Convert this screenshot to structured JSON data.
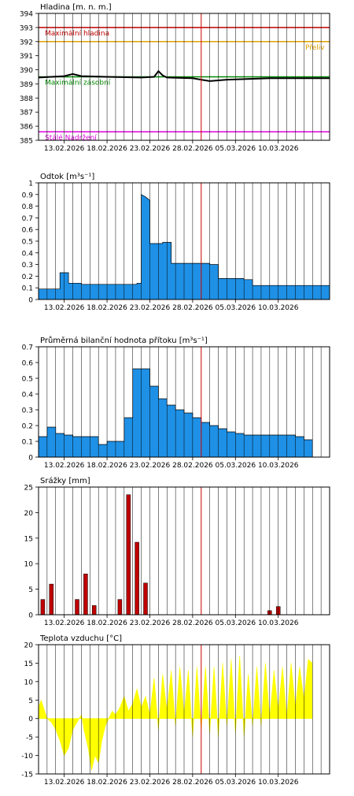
{
  "x_dates": [
    "13.02.2026",
    "18.02.2026",
    "23.02.2026",
    "28.02.2026",
    "05.03.2026",
    "10.03.2026"
  ],
  "colors": {
    "fill": "#1e90e6",
    "bar": "#c00000",
    "temp": "#ffff00",
    "today": "#cc0000",
    "grid": "#000000"
  },
  "chart_data": [
    {
      "type": "line",
      "title": "Hladina [m. n. m.]",
      "ylim": [
        385,
        394
      ],
      "yticks": [
        385,
        386,
        387,
        388,
        389,
        390,
        391,
        392,
        393,
        394
      ],
      "x_start": "2026-02-10",
      "x_end": "2026-03-15",
      "levels": [
        {
          "name": "Maximální hladina",
          "value": 393,
          "color": "#c00000"
        },
        {
          "name": "Přeliv",
          "value": 392,
          "color": "#e0a000"
        },
        {
          "name": "Maximální zásobní",
          "value": 389.5,
          "color": "#008800"
        },
        {
          "name": "Stálé Nadržení",
          "value": 385.6,
          "color": "#dd00dd"
        }
      ],
      "series": [
        {
          "values": [
            [
              0,
              389.45
            ],
            [
              3,
              389.55
            ],
            [
              4,
              389.7
            ],
            [
              5,
              389.55
            ],
            [
              8,
              389.5
            ],
            [
              12,
              389.45
            ],
            [
              13.5,
              389.5
            ],
            [
              14,
              389.9
            ],
            [
              14.5,
              389.6
            ],
            [
              15,
              389.45
            ],
            [
              18,
              389.4
            ],
            [
              19,
              389.3
            ],
            [
              20,
              389.2
            ],
            [
              22,
              389.3
            ],
            [
              27,
              389.4
            ],
            [
              34,
              389.4
            ]
          ]
        }
      ]
    },
    {
      "type": "area",
      "title": "Odtok [m³s⁻¹]",
      "ylim": [
        0,
        1
      ],
      "yticks": [
        0,
        0.1,
        0.2,
        0.3,
        0.4,
        0.5,
        0.6,
        0.7,
        0.8,
        0.9,
        1
      ],
      "series": [
        {
          "values": [
            [
              0,
              0.09
            ],
            [
              2.5,
              0.09
            ],
            [
              2.5,
              0.23
            ],
            [
              3.5,
              0.23
            ],
            [
              3.5,
              0.14
            ],
            [
              5,
              0.14
            ],
            [
              5,
              0.13
            ],
            [
              11.5,
              0.13
            ],
            [
              11.5,
              0.14
            ],
            [
              12,
              0.14
            ],
            [
              12,
              0.9
            ],
            [
              12.5,
              0.88
            ],
            [
              13,
              0.85
            ],
            [
              13,
              0.48
            ],
            [
              14.5,
              0.48
            ],
            [
              14.5,
              0.49
            ],
            [
              15.5,
              0.49
            ],
            [
              15.5,
              0.31
            ],
            [
              20,
              0.31
            ],
            [
              20,
              0.3
            ],
            [
              21,
              0.3
            ],
            [
              21,
              0.18
            ],
            [
              24,
              0.18
            ],
            [
              24,
              0.17
            ],
            [
              25,
              0.17
            ],
            [
              25,
              0.12
            ],
            [
              34,
              0.12
            ]
          ]
        }
      ]
    },
    {
      "type": "area",
      "title": "Průměrná bilanční hodnota přítoku [m³s⁻¹]",
      "ylim": [
        0,
        0.7
      ],
      "yticks": [
        0,
        0.1,
        0.2,
        0.3,
        0.4,
        0.5,
        0.6,
        0.7
      ],
      "series": [
        {
          "values": [
            [
              0,
              0.13
            ],
            [
              1,
              0.13
            ],
            [
              1,
              0.19
            ],
            [
              2,
              0.19
            ],
            [
              2,
              0.15
            ],
            [
              3,
              0.15
            ],
            [
              3,
              0.14
            ],
            [
              4,
              0.14
            ],
            [
              4,
              0.13
            ],
            [
              7,
              0.13
            ],
            [
              7,
              0.08
            ],
            [
              8,
              0.08
            ],
            [
              8,
              0.1
            ],
            [
              10,
              0.1
            ],
            [
              10,
              0.25
            ],
            [
              11,
              0.25
            ],
            [
              11,
              0.56
            ],
            [
              13,
              0.56
            ],
            [
              13,
              0.45
            ],
            [
              14,
              0.45
            ],
            [
              14,
              0.37
            ],
            [
              15,
              0.37
            ],
            [
              15,
              0.33
            ],
            [
              16,
              0.33
            ],
            [
              16,
              0.3
            ],
            [
              17,
              0.3
            ],
            [
              17,
              0.28
            ],
            [
              18,
              0.28
            ],
            [
              18,
              0.25
            ],
            [
              19,
              0.25
            ],
            [
              19,
              0.22
            ],
            [
              20,
              0.22
            ],
            [
              20,
              0.2
            ],
            [
              21,
              0.2
            ],
            [
              21,
              0.18
            ],
            [
              22,
              0.18
            ],
            [
              22,
              0.16
            ],
            [
              23,
              0.16
            ],
            [
              23,
              0.15
            ],
            [
              24,
              0.15
            ],
            [
              24,
              0.14
            ],
            [
              30,
              0.14
            ],
            [
              30,
              0.13
            ],
            [
              31,
              0.13
            ],
            [
              31,
              0.11
            ],
            [
              32,
              0.11
            ]
          ]
        }
      ]
    },
    {
      "type": "bar",
      "title": "Srážky [mm]",
      "ylim": [
        0,
        25
      ],
      "yticks": [
        0,
        5,
        10,
        15,
        20,
        25
      ],
      "series": [
        {
          "values": [
            [
              0,
              3
            ],
            [
              1,
              6
            ],
            [
              4,
              3
            ],
            [
              5,
              8
            ],
            [
              6,
              1.8
            ],
            [
              9,
              3
            ],
            [
              10,
              23.5
            ],
            [
              11,
              14.2
            ],
            [
              12,
              6.2
            ],
            [
              26.5,
              0.8
            ],
            [
              27.5,
              1.6
            ]
          ]
        }
      ]
    },
    {
      "type": "area",
      "title": "Teplota vzduchu [°C]",
      "ylim": [
        -15,
        20
      ],
      "yticks": [
        -15,
        -10,
        -5,
        0,
        5,
        10,
        15,
        20
      ],
      "series": [
        {
          "values": [
            [
              0,
              3
            ],
            [
              0.3,
              5
            ],
            [
              1,
              0
            ],
            [
              1.5,
              -1
            ],
            [
              2,
              -3
            ],
            [
              2.5,
              -6
            ],
            [
              3,
              -10
            ],
            [
              3.5,
              -8
            ],
            [
              4,
              -3
            ],
            [
              4.5,
              -1
            ],
            [
              5,
              1
            ],
            [
              5.3,
              -3
            ],
            [
              5.8,
              -8
            ],
            [
              6.2,
              -14
            ],
            [
              6.6,
              -10
            ],
            [
              7,
              -12
            ],
            [
              7.4,
              -6
            ],
            [
              7.8,
              -2
            ],
            [
              8.2,
              0
            ],
            [
              8.6,
              2
            ],
            [
              9,
              1
            ],
            [
              9.5,
              3
            ],
            [
              10,
              6
            ],
            [
              10.5,
              2
            ],
            [
              11,
              4
            ],
            [
              11.5,
              8
            ],
            [
              12,
              3
            ],
            [
              12.5,
              6
            ],
            [
              13,
              1
            ],
            [
              13.5,
              11
            ],
            [
              14,
              -3
            ],
            [
              14.5,
              12
            ],
            [
              15,
              2
            ],
            [
              15.5,
              13
            ],
            [
              16,
              -2
            ],
            [
              16.5,
              14
            ],
            [
              17,
              1
            ],
            [
              17.5,
              13
            ],
            [
              18,
              -5
            ],
            [
              18.5,
              14
            ],
            [
              19,
              -3
            ],
            [
              19.5,
              14
            ],
            [
              20,
              -4
            ],
            [
              20.5,
              14
            ],
            [
              21,
              -5
            ],
            [
              21.5,
              15
            ],
            [
              22,
              -2
            ],
            [
              22.5,
              16
            ],
            [
              23,
              -4
            ],
            [
              23.5,
              17
            ],
            [
              24,
              -5
            ],
            [
              24.5,
              12
            ],
            [
              25,
              -2
            ],
            [
              25.5,
              14
            ],
            [
              26,
              -2
            ],
            [
              26.5,
              15
            ],
            [
              27,
              0
            ],
            [
              27.5,
              13
            ],
            [
              28,
              2
            ],
            [
              28.5,
              14
            ],
            [
              29,
              0
            ],
            [
              29.5,
              15
            ],
            [
              30,
              3
            ],
            [
              30.5,
              14
            ],
            [
              31,
              5
            ],
            [
              31.5,
              16
            ],
            [
              32,
              15
            ]
          ]
        }
      ]
    }
  ]
}
